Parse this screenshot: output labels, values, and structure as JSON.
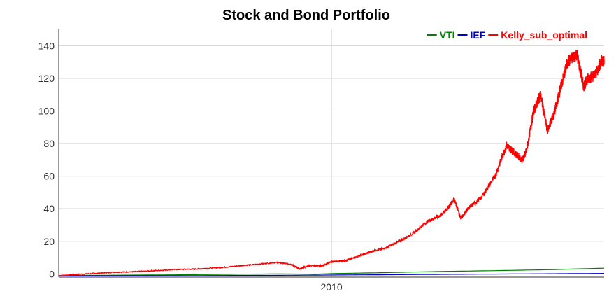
{
  "chart_data": {
    "type": "line",
    "title": "Stock and Bond Portfolio",
    "xlabel": "",
    "ylabel": "",
    "x_range": [
      "2000-01-01",
      "2020-01-01"
    ],
    "ylim": [
      -2,
      150
    ],
    "yticks": [
      0,
      20,
      40,
      60,
      80,
      100,
      120,
      140
    ],
    "xticks": [
      {
        "value": "2010-01-01",
        "label": "2010"
      }
    ],
    "grid": true,
    "legend_placement": "top-right",
    "series": [
      {
        "name": "VTI",
        "color": "#008000",
        "x": [
          "2000-01-01",
          "2002-01-01",
          "2004-01-01",
          "2006-01-01",
          "2008-01-01",
          "2009-06-01",
          "2010-01-01",
          "2012-01-01",
          "2014-01-01",
          "2016-01-01",
          "2018-01-01",
          "2020-01-01"
        ],
        "values": [
          -1,
          -0.8,
          -0.6,
          -0.3,
          0,
          -0.2,
          0.2,
          0.8,
          1.5,
          2.0,
          2.6,
          3.5
        ]
      },
      {
        "name": "IEF",
        "color": "#0000cc",
        "x": [
          "2000-01-01",
          "2004-01-01",
          "2008-01-01",
          "2010-01-01",
          "2012-01-01",
          "2014-01-01",
          "2016-01-01",
          "2018-01-01",
          "2020-01-01"
        ],
        "values": [
          -1.2,
          -1.1,
          -0.9,
          -0.7,
          -0.5,
          -0.3,
          -0.1,
          0.1,
          0.3
        ]
      },
      {
        "name": "Kelly_sub_optimal",
        "color": "#ff0000",
        "x": [
          "2000-01-01",
          "2001-01-01",
          "2002-01-01",
          "2003-01-01",
          "2004-01-01",
          "2005-01-01",
          "2006-01-01",
          "2007-01-01",
          "2008-01-01",
          "2008-07-01",
          "2008-11-01",
          "2009-03-01",
          "2009-09-01",
          "2010-01-01",
          "2010-07-01",
          "2011-01-01",
          "2011-07-01",
          "2012-01-01",
          "2012-07-01",
          "2013-01-01",
          "2013-07-01",
          "2014-01-01",
          "2014-04-01",
          "2014-07-01",
          "2014-10-01",
          "2015-01-01",
          "2015-07-01",
          "2016-01-01",
          "2016-06-01",
          "2016-09-01",
          "2017-01-01",
          "2017-03-01",
          "2017-06-01",
          "2017-09-01",
          "2017-12-01",
          "2018-03-01",
          "2018-06-01",
          "2018-09-01",
          "2019-01-01",
          "2019-04-01",
          "2019-06-01",
          "2019-09-01",
          "2019-12-01",
          "2020-01-01"
        ],
        "values": [
          -1,
          0,
          1,
          1.5,
          2.5,
          3,
          4,
          5.5,
          7,
          6,
          3,
          5,
          5,
          7.5,
          8,
          11,
          14,
          16,
          20,
          25,
          32,
          36,
          40,
          46,
          34,
          40,
          47,
          60,
          79,
          75,
          70,
          76,
          100,
          110,
          88,
          98,
          115,
          130,
          135,
          115,
          120,
          122,
          131,
          130
        ]
      }
    ]
  }
}
